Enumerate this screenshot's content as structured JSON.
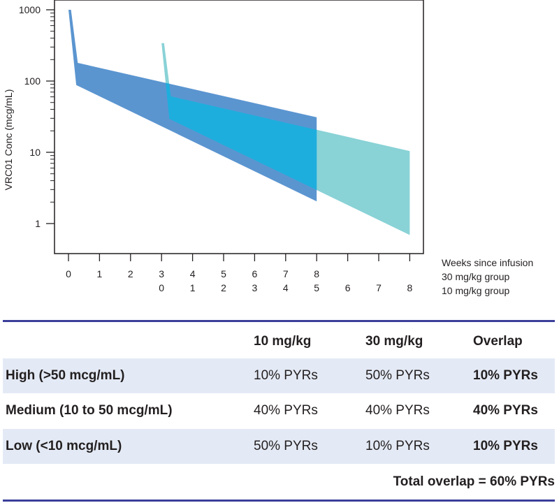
{
  "chart_data": {
    "type": "area",
    "ylabel": "VRC01 Conc (mcg/mL)",
    "yscale": "log",
    "ylim": [
      0.4,
      1000
    ],
    "yticks": [
      1,
      10,
      100,
      1000
    ],
    "ytick_labels": [
      "1",
      "10",
      "100",
      "1000"
    ],
    "xlabel": "Weeks since infusion",
    "x_axis_rows": [
      {
        "label": "30 mg/kg group",
        "ticks": [
          "0",
          "1",
          "2",
          "3",
          "4",
          "5",
          "6",
          "7",
          "8"
        ],
        "offset_weeks": 0
      },
      {
        "label": "10 mg/kg group",
        "ticks": [
          "0",
          "1",
          "2",
          "3",
          "4",
          "5",
          "6",
          "7",
          "8"
        ],
        "offset_weeks": 3
      }
    ],
    "xlim": [
      -0.5,
      11.4
    ],
    "series": [
      {
        "name": "30 mg/kg group",
        "color": "#5b95d0",
        "offset_weeks": 0,
        "peak": [
          0,
          1000
        ],
        "upper": [
          [
            0.3,
            180
          ],
          [
            8,
            31
          ]
        ],
        "lower": [
          [
            0.25,
            88
          ],
          [
            8,
            2.05
          ]
        ]
      },
      {
        "name": "10 mg/kg group",
        "color": "#89d2d6",
        "offset_weeks": 3,
        "peak": [
          0,
          340
        ],
        "upper": [
          [
            0.3,
            61
          ],
          [
            8,
            10.4
          ]
        ],
        "lower": [
          [
            0.25,
            29.5
          ],
          [
            8,
            0.69
          ]
        ]
      }
    ],
    "overlap_color": "#1eaedd"
  },
  "table": {
    "headers": [
      "",
      "10 mg/kg",
      "30 mg/kg",
      "Overlap"
    ],
    "rows": [
      {
        "label": "High (>50 mcg/mL)",
        "c10": "10% PYRs",
        "c30": "50% PYRs",
        "overlap": "10% PYRs"
      },
      {
        "label": "Medium (10 to 50 mcg/mL)",
        "c10": "40% PYRs",
        "c30": "40% PYRs",
        "overlap": "40% PYRs"
      },
      {
        "label": "Low (<10 mcg/mL)",
        "c10": "50% PYRs",
        "c30": "10% PYRs",
        "overlap": "10% PYRs"
      }
    ],
    "total": "Total overlap = 60% PYRs"
  }
}
